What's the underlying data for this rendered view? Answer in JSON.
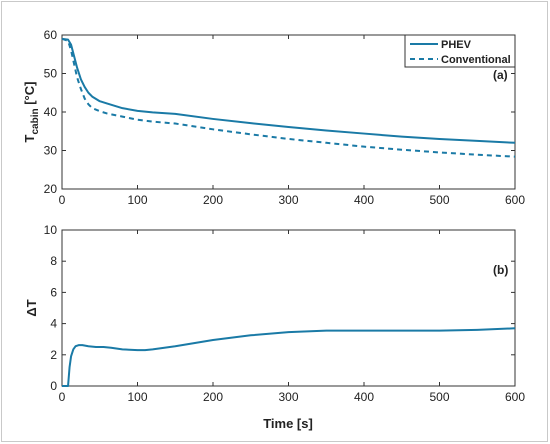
{
  "chart_data": [
    {
      "type": "line",
      "panel_label": "(a)",
      "ylabel_main": "T",
      "ylabel_sub": "cabin",
      "ylabel_unit": " [°C]",
      "xlim": [
        0,
        600
      ],
      "ylim": [
        20,
        60
      ],
      "xticks": [
        0,
        100,
        200,
        300,
        400,
        500,
        600
      ],
      "yticks": [
        20,
        30,
        40,
        50,
        60
      ],
      "legend": "top-right",
      "color": "#1a7aa6",
      "series": [
        {
          "name": "PHEV",
          "style": "solid",
          "x": [
            0,
            8,
            12,
            16,
            20,
            25,
            30,
            35,
            40,
            50,
            60,
            80,
            100,
            120,
            150,
            200,
            250,
            300,
            350,
            400,
            450,
            500,
            550,
            600
          ],
          "y": [
            59,
            58.8,
            57.5,
            54.5,
            51.5,
            48.5,
            46.5,
            45,
            44,
            42.8,
            42.2,
            41,
            40.3,
            39.9,
            39.5,
            38.2,
            37.1,
            36.1,
            35.2,
            34.4,
            33.6,
            33,
            32.5,
            32
          ]
        },
        {
          "name": "Conventional",
          "style": "dashed",
          "x": [
            0,
            8,
            12,
            16,
            20,
            25,
            30,
            35,
            40,
            50,
            60,
            80,
            100,
            120,
            150,
            200,
            250,
            300,
            350,
            400,
            450,
            500,
            550,
            600
          ],
          "y": [
            59,
            58.5,
            56,
            52.5,
            49,
            46,
            43.5,
            42,
            41,
            40.2,
            39.6,
            38.8,
            38,
            37.5,
            37,
            35.5,
            34.2,
            33,
            32,
            31,
            30.2,
            29.5,
            28.9,
            28.4
          ]
        }
      ]
    },
    {
      "type": "line",
      "panel_label": "(b)",
      "ylabel_main": "ΔT",
      "xlabel": "Time [s]",
      "xlim": [
        0,
        600
      ],
      "ylim": [
        0,
        10
      ],
      "xticks": [
        0,
        100,
        200,
        300,
        400,
        500,
        600
      ],
      "yticks": [
        0,
        2,
        4,
        6,
        8,
        10
      ],
      "color": "#1a7aa6",
      "series": [
        {
          "style": "solid",
          "x": [
            0,
            8,
            10,
            12,
            15,
            18,
            22,
            27,
            35,
            45,
            55,
            65,
            80,
            100,
            110,
            120,
            150,
            200,
            250,
            300,
            350,
            400,
            450,
            500,
            550,
            600
          ],
          "y": [
            0,
            0,
            1.2,
            1.9,
            2.35,
            2.55,
            2.62,
            2.62,
            2.55,
            2.5,
            2.5,
            2.45,
            2.35,
            2.3,
            2.3,
            2.35,
            2.55,
            2.95,
            3.25,
            3.45,
            3.55,
            3.55,
            3.55,
            3.55,
            3.6,
            3.7
          ]
        }
      ]
    }
  ]
}
